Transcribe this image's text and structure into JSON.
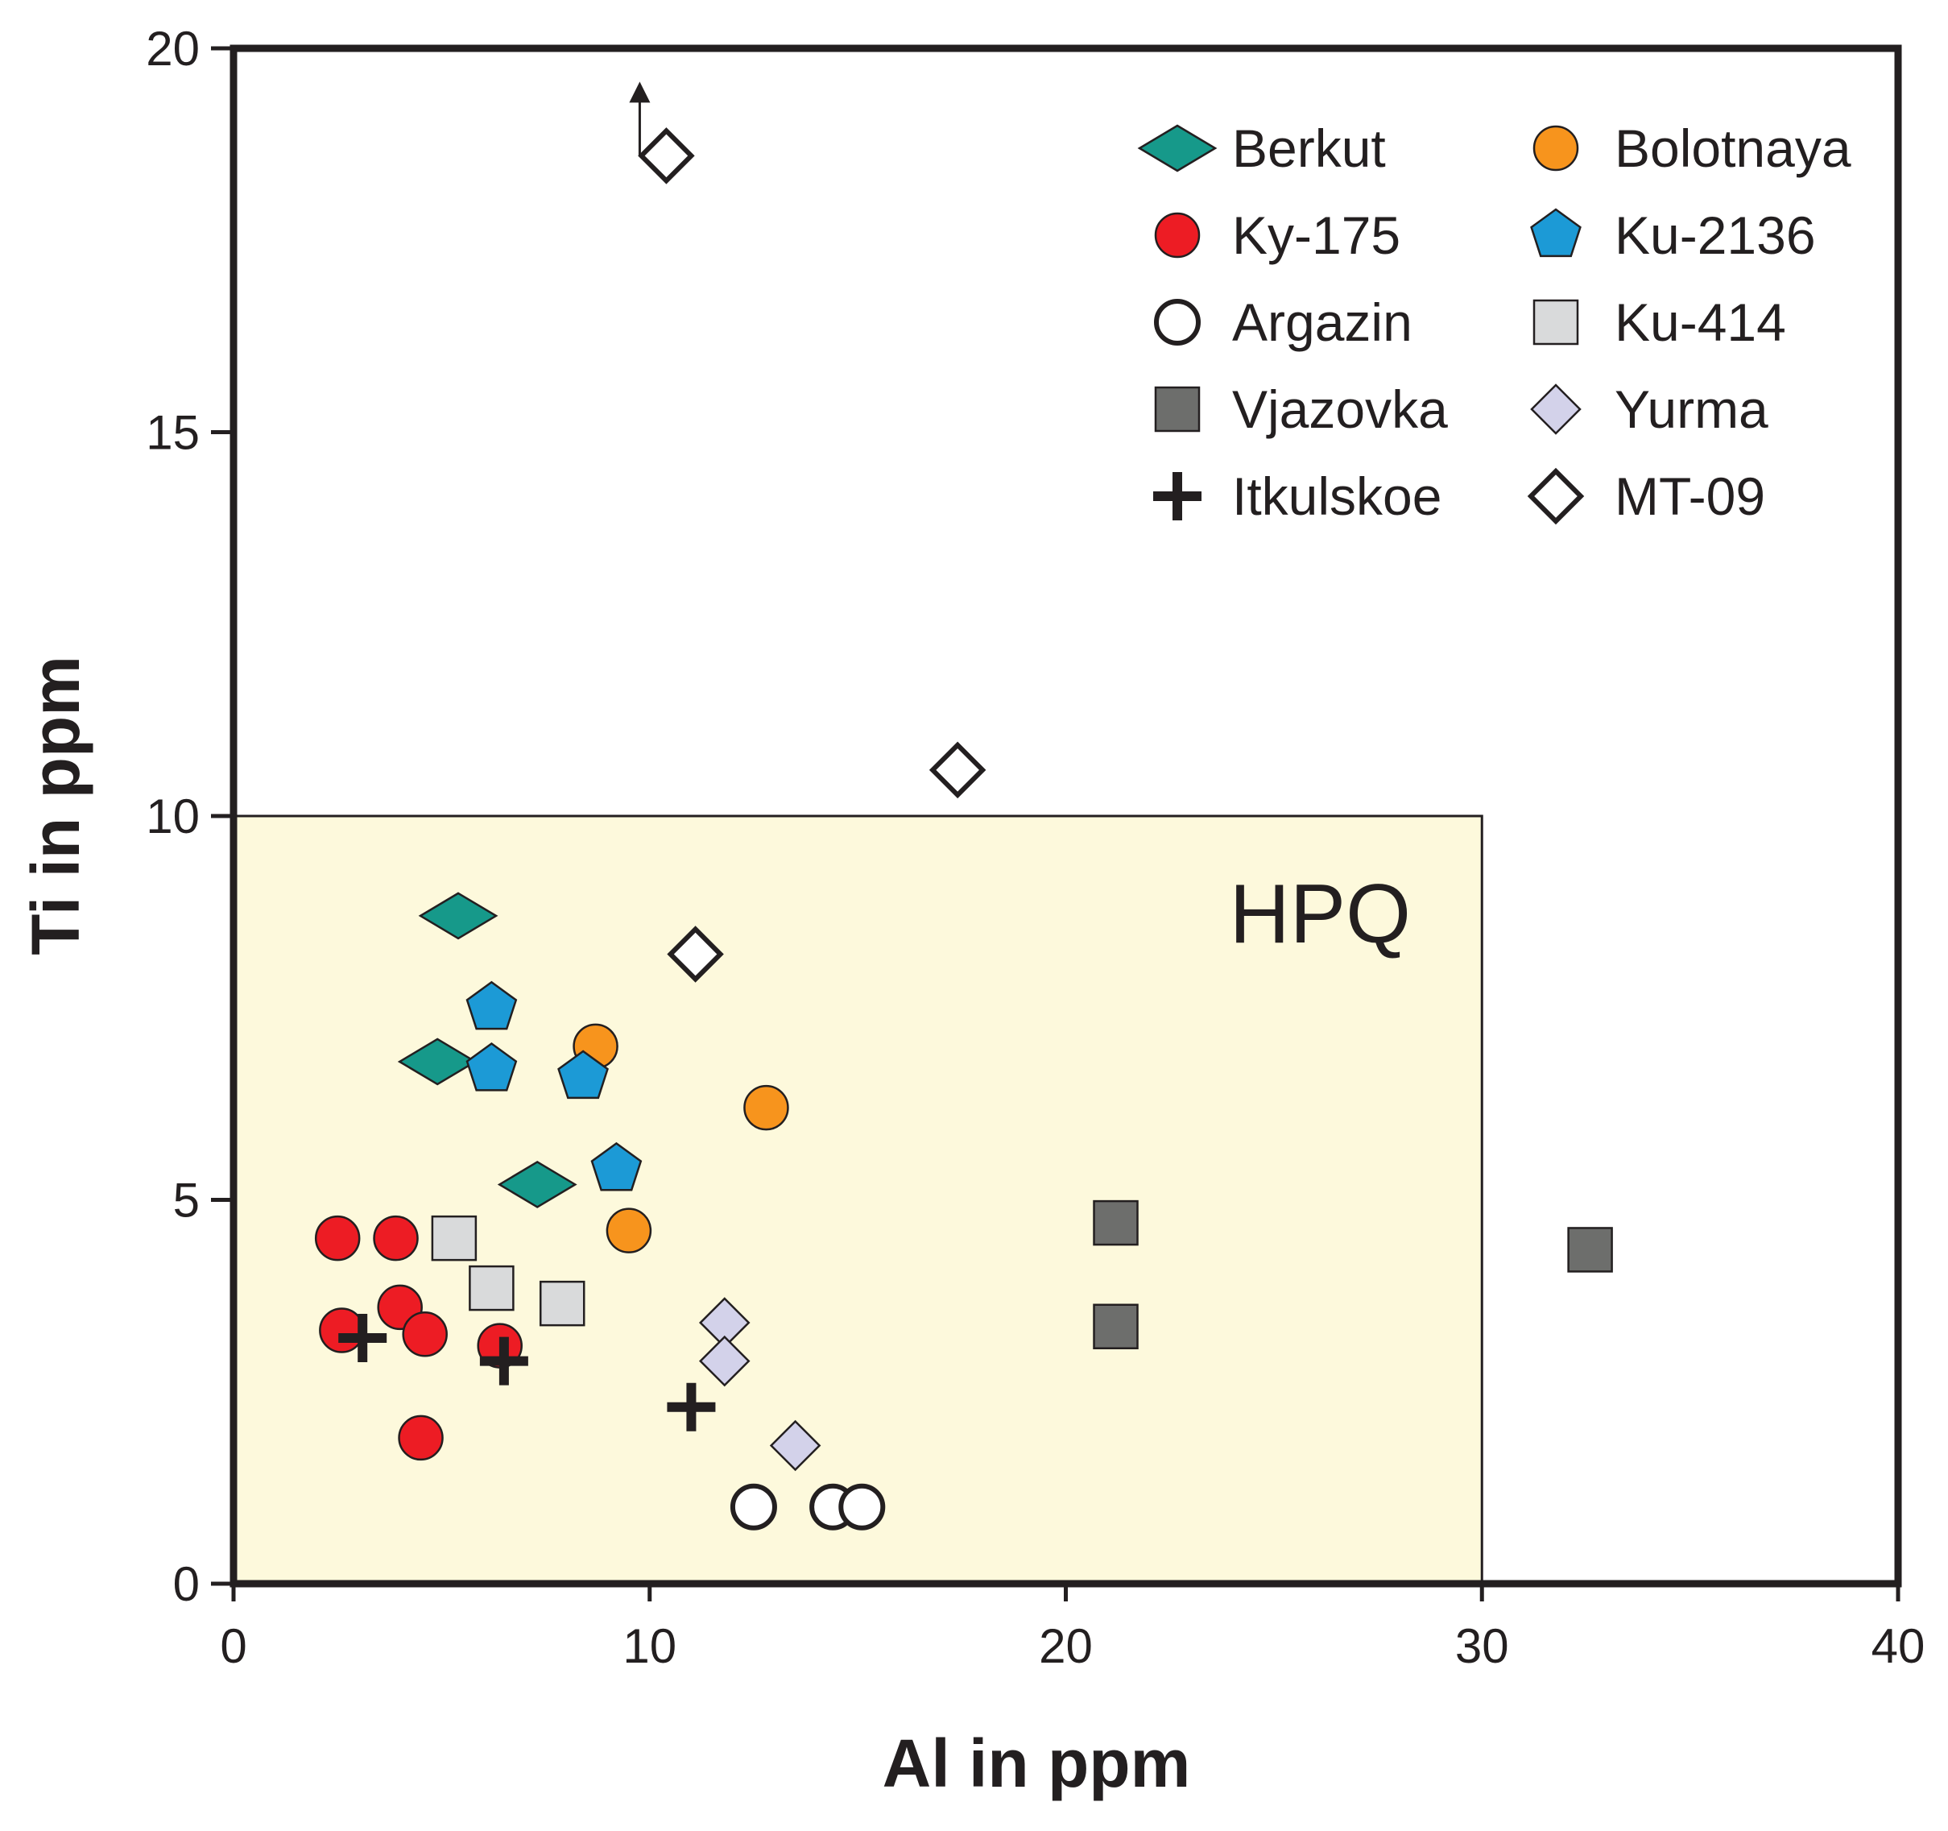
{
  "chart_data": {
    "type": "scatter",
    "xlabel": "Al in ppm",
    "ylabel": "Ti in ppm",
    "xlim": [
      0,
      40
    ],
    "ylim": [
      0,
      20
    ],
    "xticks": [
      "0",
      "10",
      "20",
      "30",
      "40"
    ],
    "yticks": [
      "0",
      "5",
      "10",
      "15",
      "20"
    ],
    "grid": false,
    "legend_position": "top-right",
    "region": {
      "label": "HPQ",
      "x_range": [
        0,
        30
      ],
      "y_range": [
        0,
        10
      ],
      "color": "#fdf9dc"
    },
    "series": [
      {
        "name": "Berkut",
        "marker": "diamond",
        "color": "#16998a",
        "points": [
          [
            5.4,
            8.7
          ],
          [
            4.9,
            6.8
          ],
          [
            7.3,
            5.2
          ]
        ]
      },
      {
        "name": "Bolotnaya",
        "marker": "circle",
        "color": "#f7941d",
        "points": [
          [
            8.7,
            7.0
          ],
          [
            12.8,
            6.2
          ],
          [
            9.5,
            4.6
          ]
        ]
      },
      {
        "name": "Ky-175",
        "marker": "circle",
        "color": "#ed1c24",
        "points": [
          [
            2.5,
            4.5
          ],
          [
            3.9,
            4.5
          ],
          [
            4.0,
            3.6
          ],
          [
            2.6,
            3.3
          ],
          [
            4.6,
            3.25
          ],
          [
            6.4,
            3.1
          ],
          [
            4.5,
            1.9
          ]
        ]
      },
      {
        "name": "Ku-2136",
        "marker": "pentagon",
        "color": "#1c9ad6",
        "points": [
          [
            6.2,
            7.5
          ],
          [
            6.2,
            6.7
          ],
          [
            8.4,
            6.6
          ],
          [
            9.2,
            5.4
          ]
        ]
      },
      {
        "name": "Argazin",
        "marker": "circle-open",
        "color": "#ffffff",
        "points": [
          [
            12.5,
            1.0
          ],
          [
            14.4,
            1.0
          ],
          [
            15.1,
            1.0
          ]
        ]
      },
      {
        "name": "Ku-414",
        "marker": "square",
        "color": "#d9dadb",
        "points": [
          [
            5.3,
            4.5
          ],
          [
            6.2,
            3.85
          ],
          [
            7.9,
            3.65
          ]
        ]
      },
      {
        "name": "Vjazovka",
        "marker": "square",
        "color": "#6d6e6c",
        "points": [
          [
            21.2,
            4.7
          ],
          [
            21.2,
            3.35
          ],
          [
            32.6,
            4.35
          ]
        ]
      },
      {
        "name": "Yurma",
        "marker": "diamond",
        "color": "#d3d2ea",
        "points": [
          [
            11.8,
            3.4
          ],
          [
            11.8,
            2.9
          ],
          [
            13.5,
            1.8
          ]
        ]
      },
      {
        "name": "Itkulskoe",
        "marker": "plus",
        "color": "#231f20",
        "points": [
          [
            3.1,
            3.2
          ],
          [
            6.5,
            2.9
          ],
          [
            11.0,
            2.3
          ]
        ]
      },
      {
        "name": "MT-09",
        "marker": "diamond-open",
        "color": "#ffffff",
        "points": [
          [
            10.4,
            18.6
          ],
          [
            17.4,
            10.6
          ],
          [
            11.1,
            8.2
          ]
        ],
        "arrow_up_point": [
          10.4,
          18.6
        ]
      }
    ]
  }
}
